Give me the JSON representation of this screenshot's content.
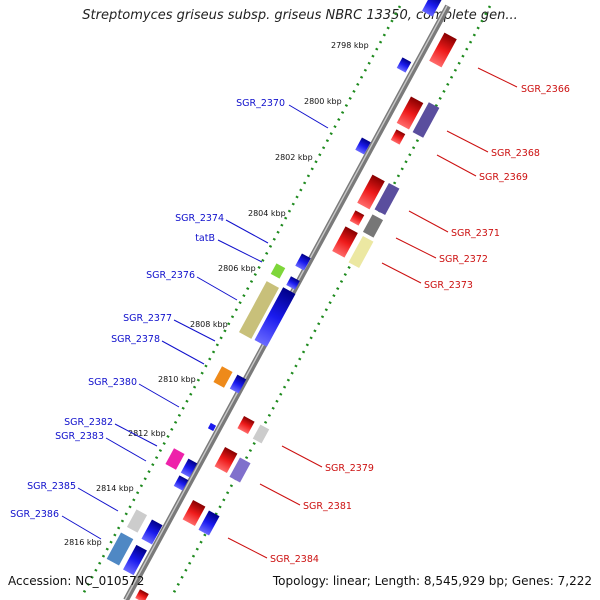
{
  "title": "Streptomyces griseus subsp. griseus NBRC 13350, complete gen...",
  "footer": {
    "accession": "Accession: NC_010572",
    "summary": "Topology: linear; Length: 8,545,929 bp; Genes: 7,222"
  },
  "colors": {
    "backbone": "#7a7a7a",
    "tick_dots": "#1e8a1e",
    "forward_gene": "#1a1aee",
    "reverse_gene": "#ee1a1a",
    "forward_label": "#1010cc",
    "reverse_label": "#cc1010"
  },
  "kbp_ticks": [
    "2798 kbp",
    "2800 kbp",
    "2802 kbp",
    "2804 kbp",
    "2806 kbp",
    "2808 kbp",
    "2810 kbp",
    "2812 kbp",
    "2814 kbp",
    "2816 kbp"
  ],
  "left_labels": [
    "SGR_2370",
    "SGR_2374",
    "tatB",
    "SGR_2376",
    "SGR_2377",
    "SGR_2378",
    "SGR_2380",
    "SGR_2382",
    "SGR_2383",
    "SGR_2385",
    "SGR_2386"
  ],
  "right_labels": [
    "SGR_2366",
    "SGR_2368",
    "SGR_2369",
    "SGR_2371",
    "SGR_2372",
    "SGR_2373",
    "SGR_2379",
    "SGR_2381",
    "SGR_2384"
  ]
}
